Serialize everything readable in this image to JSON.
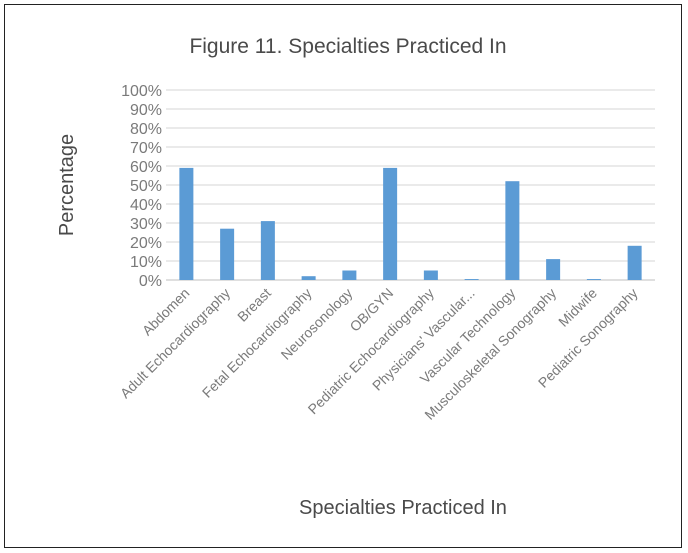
{
  "chart_data": {
    "type": "bar",
    "title": "Figure 11. Specialties Practiced In",
    "xlabel": "Specialties Practiced In",
    "ylabel": "Percentage",
    "categories": [
      "Abdomen",
      "Adult Echocardiography",
      "Breast",
      "Fetal Echocardiography",
      "Neurosonology",
      "OB/GYN",
      "Pediatric Echocardiography",
      "Physicians' Vascular...",
      "Vascular Technology",
      "Musculoskeletal Sonography",
      "Midwife",
      "Pediatric Sonography"
    ],
    "values": [
      59,
      27,
      31,
      2,
      5,
      59,
      5,
      0.5,
      52,
      11,
      0.5,
      18
    ],
    "ylim": [
      0,
      100
    ],
    "y_ticks": [
      "0%",
      "10%",
      "20%",
      "30%",
      "40%",
      "50%",
      "60%",
      "70%",
      "80%",
      "90%",
      "100%"
    ],
    "grid": true,
    "bar_color": "#5b9bd5"
  }
}
